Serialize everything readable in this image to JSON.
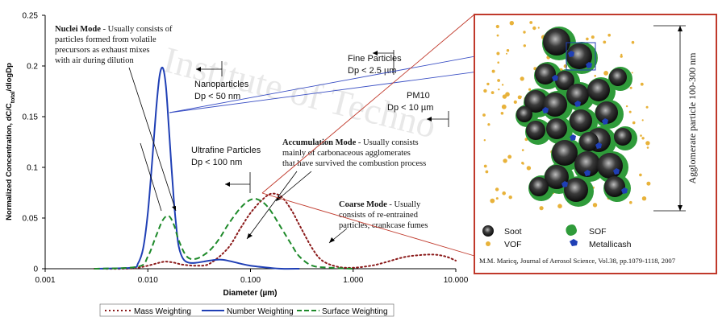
{
  "chart_data": {
    "type": "line",
    "xlabel": "Diameter (µm)",
    "ylabel": "Normalized Concentration, dC/C",
    "ylabel_sub": "total",
    "ylabel_tail": "/dlogDp",
    "xscale": "log",
    "xlim": [
      0.001,
      10
    ],
    "ylim": [
      0,
      0.25
    ],
    "xticks": [
      "0.001",
      "0.010",
      "0.100",
      "1.000",
      "10.000"
    ],
    "xtick_values": [
      0.001,
      0.01,
      0.1,
      1,
      10
    ],
    "yticks": [
      "0",
      "0.05",
      "0.1",
      "0.15",
      "0.2",
      "0.25"
    ],
    "ytick_values": [
      0,
      0.05,
      0.1,
      0.15,
      0.2,
      0.25
    ],
    "legend_position": "bottom",
    "series": [
      {
        "name": "Mass Weighting",
        "color": "#8b1a1a",
        "dash": "dotted",
        "x": [
          0.003,
          0.006,
          0.008,
          0.01,
          0.013,
          0.015,
          0.018,
          0.022,
          0.03,
          0.04,
          0.06,
          0.08,
          0.1,
          0.13,
          0.16,
          0.2,
          0.25,
          0.3,
          0.4,
          0.5,
          0.7,
          1.0,
          1.5,
          2.0,
          3.0,
          4.0,
          6.0,
          8.0,
          10.0
        ],
        "y": [
          0,
          0,
          0.001,
          0.003,
          0.006,
          0.007,
          0.006,
          0.004,
          0.003,
          0.005,
          0.02,
          0.04,
          0.055,
          0.068,
          0.074,
          0.071,
          0.058,
          0.043,
          0.02,
          0.008,
          0.002,
          0.001,
          0.003,
          0.006,
          0.011,
          0.013,
          0.014,
          0.012,
          0.008
        ]
      },
      {
        "name": "Number Weighting",
        "color": "#1f3fb5",
        "dash": "solid",
        "x": [
          0.003,
          0.007,
          0.008,
          0.009,
          0.01,
          0.011,
          0.012,
          0.013,
          0.014,
          0.015,
          0.016,
          0.017,
          0.018,
          0.019,
          0.02,
          0.022,
          0.025,
          0.03,
          0.04,
          0.05,
          0.06,
          0.08,
          0.1,
          0.15,
          0.2,
          0.3
        ],
        "y": [
          0,
          0.001,
          0.005,
          0.02,
          0.055,
          0.105,
          0.155,
          0.19,
          0.198,
          0.18,
          0.14,
          0.1,
          0.065,
          0.04,
          0.022,
          0.01,
          0.006,
          0.006,
          0.008,
          0.009,
          0.008,
          0.005,
          0.003,
          0.001,
          0,
          0
        ]
      },
      {
        "name": "Surface Weighting",
        "color": "#1e8a2a",
        "dash": "dashed",
        "x": [
          0.003,
          0.008,
          0.01,
          0.012,
          0.014,
          0.016,
          0.018,
          0.02,
          0.024,
          0.03,
          0.04,
          0.05,
          0.06,
          0.08,
          0.1,
          0.12,
          0.15,
          0.2,
          0.25,
          0.3,
          0.4,
          0.6,
          1.0
        ],
        "y": [
          0,
          0.002,
          0.012,
          0.032,
          0.048,
          0.052,
          0.043,
          0.028,
          0.012,
          0.01,
          0.018,
          0.03,
          0.043,
          0.06,
          0.068,
          0.068,
          0.06,
          0.04,
          0.024,
          0.012,
          0.003,
          0.001,
          0
        ]
      }
    ],
    "annotations": {
      "nuclei": {
        "bold": "Nuclei Mode",
        "rest1": " - Usually consists of",
        "lines": [
          "particles formed from volatile",
          "precursors as exhaust mixes",
          "with air during dilution"
        ]
      },
      "fine": [
        "Fine Particles",
        "Dp < 2.5 µm"
      ],
      "nano": [
        "Nanoparticles",
        "Dp < 50 nm"
      ],
      "pm10": [
        "PM10",
        "Dp < 10 µm"
      ],
      "ultrafine": [
        "Ultrafine Particles",
        "Dp < 100 nm"
      ],
      "accumulation": {
        "bold": "Accumulation Mode",
        "rest1": " - Usually consists",
        "lines": [
          "mainly of carbonaceous agglomerates",
          "that have survived the combustion process"
        ]
      },
      "coarse": {
        "bold": "Coarse Mode",
        "rest1": " - Usually",
        "lines": [
          "consists of re-entrained",
          "particles, crankcase fumes"
        ]
      }
    }
  },
  "inset": {
    "agglomerate_label": "Agglomerate particle 100-300 nm",
    "legend": [
      {
        "label": "Soot",
        "icon": "soot-icon"
      },
      {
        "label": "SOF",
        "icon": "sof-icon"
      },
      {
        "label": "VOF",
        "icon": "vof-icon"
      },
      {
        "label": "Metallicash",
        "icon": "metallic-ash-icon"
      }
    ],
    "citation": "M.M. Maricq, Journal of Aerosol Science, Vol.38, pp.1079-1118, 2007",
    "border_color": "#c0392b"
  },
  "watermark": [
    "Institute of Techno"
  ]
}
